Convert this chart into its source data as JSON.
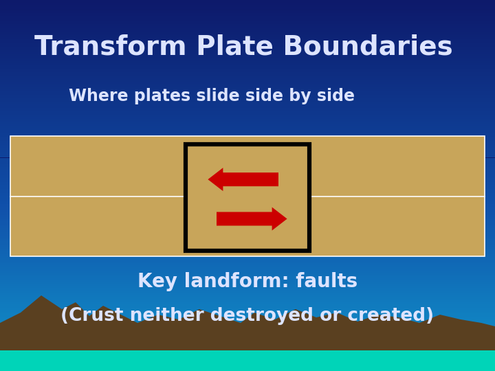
{
  "title": "Transform Plate Boundaries",
  "subtitle": "Where plates slide side by side",
  "key_landform": "Key landform: faults",
  "crust_text": "(Crust neither destroyed or created)",
  "bg_color_top": "#0d1a6b",
  "plate_color": "#c8a55a",
  "arrow_color": "#cc0000",
  "mountain_color": "#5a4020",
  "water_color": "#00d4b8",
  "title_fontsize": 28,
  "subtitle_fontsize": 17,
  "body_fontsize": 20,
  "text_color": "#dde4ff"
}
